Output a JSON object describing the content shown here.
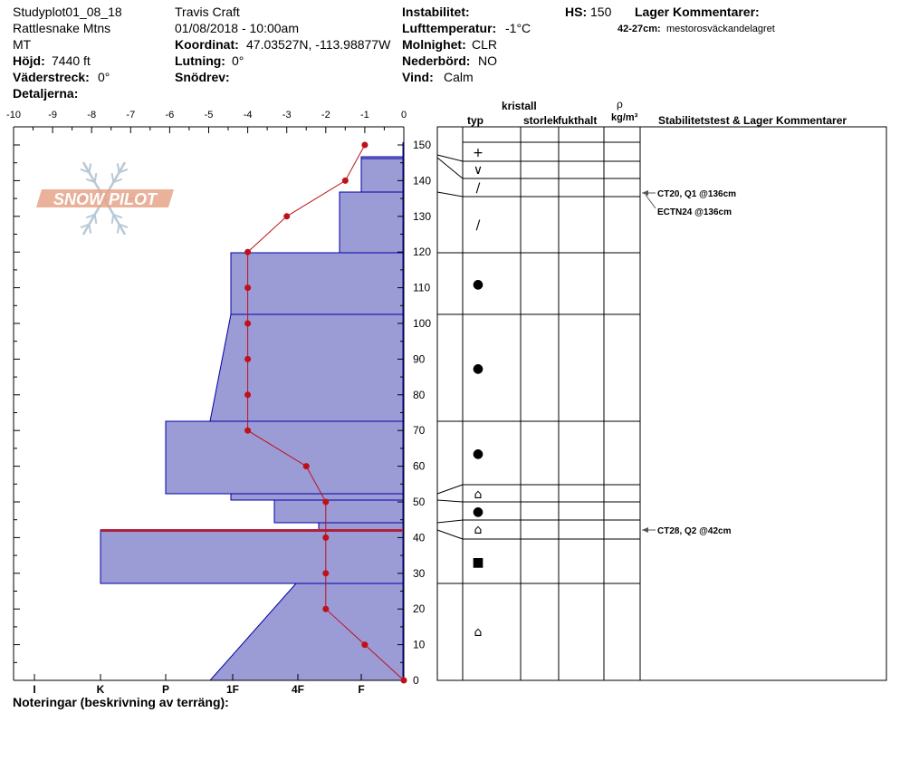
{
  "header": {
    "study_plot": "Studyplot01_08_18",
    "range": "Rattlesnake Mtns",
    "state": "MT",
    "elev_label": "Höjd:",
    "elev_value": "7440 ft",
    "aspect_label": "Väderstreck:",
    "aspect_value": "0°",
    "details_label": "Detaljerna:",
    "observer": "Travis  Craft",
    "datetime": "01/08/2018 - 10:00am",
    "coord_label": "Koordinat:",
    "coord_value": "47.03527N, -113.98877W",
    "slope_label": "Lutning:",
    "slope_value": "0°",
    "drift_label": "Snödrev:",
    "drift_value": "",
    "instab_label": "Instabilitet:",
    "instab_value": "",
    "airtemp_label": "Lufttemperatur:",
    "airtemp_value": "-1°C",
    "sky_label": "Molnighet:",
    "sky_value": "CLR",
    "precip_label": "Nederbörd:",
    "precip_value": "NO",
    "wind_label": "Vind:",
    "wind_value": "Calm",
    "hs_label": "HS:",
    "hs_value": "150",
    "layer_comments_label": "Lager Kommentarer:",
    "layer_comment_range": "42-27cm:",
    "layer_comment_text": "mestorosväckandelagret",
    "notes_label": "Noteringar (beskrivning av terräng):"
  },
  "logo": {
    "text": "SNOW PILOT"
  },
  "columns": {
    "kristall": "kristall",
    "typ": "typ",
    "storlek": "storlek",
    "fukthalt": "fukthalt",
    "rho": "ρ",
    "density_unit": "kg/m³",
    "stability": "Stabilitetstest & Lager Kommentarer"
  },
  "chart_data": {
    "type": "snow-profile",
    "temp_axis": {
      "ticks": [
        "-10",
        "-9",
        "-8",
        "-7",
        "-6",
        "-5",
        "-4",
        "-3",
        "-2",
        "-1",
        "0"
      ],
      "min": -10,
      "max": 0
    },
    "hardness_axis": {
      "ticks": [
        "I",
        "K",
        "P",
        "1F",
        "4F",
        "F"
      ]
    },
    "height_axis": {
      "ticks": [
        "150",
        "140",
        "130",
        "120",
        "110",
        "100",
        "90",
        "80",
        "70",
        "60",
        "50",
        "40",
        "30",
        "20",
        "10",
        "0"
      ],
      "min": 0,
      "max": 150
    },
    "temperature_profile": [
      {
        "h": 150,
        "t": -1.0
      },
      {
        "h": 140,
        "t": -1.5
      },
      {
        "h": 130,
        "t": -3.0
      },
      {
        "h": 120,
        "t": -4.0
      },
      {
        "h": 110,
        "t": -4.0
      },
      {
        "h": 100,
        "t": -4.0
      },
      {
        "h": 90,
        "t": -4.0
      },
      {
        "h": 80,
        "t": -4.0
      },
      {
        "h": 70,
        "t": -4.0
      },
      {
        "h": 60,
        "t": -2.5
      },
      {
        "h": 50,
        "t": -2.0
      },
      {
        "h": 40,
        "t": -2.0
      },
      {
        "h": 30,
        "t": -2.0
      },
      {
        "h": 20,
        "t": -2.0
      },
      {
        "h": 10,
        "t": -1.0
      },
      {
        "h": 0,
        "t": 0.0
      }
    ],
    "layer_boundaries": [
      150,
      146,
      145,
      136,
      120,
      102,
      72,
      52,
      50,
      45,
      42,
      40,
      27,
      0
    ],
    "crystal_types": [
      {
        "h_top": 150,
        "h_bot": 146,
        "glyph": "+"
      },
      {
        "h_top": 145,
        "h_bot": 140,
        "glyph": "∨"
      },
      {
        "h_top": 140,
        "h_bot": 136,
        "glyph": "/"
      },
      {
        "h_top": 136,
        "h_bot": 120,
        "glyph": "/"
      },
      {
        "h_top": 120,
        "h_bot": 102,
        "glyph": "●"
      },
      {
        "h_top": 102,
        "h_bot": 72,
        "glyph": "●"
      },
      {
        "h_top": 72,
        "h_bot": 52,
        "glyph": "●"
      },
      {
        "h_top": 55,
        "h_bot": 50,
        "glyph": "⌂"
      },
      {
        "h_top": 50,
        "h_bot": 45,
        "glyph": "●"
      },
      {
        "h_top": 45,
        "h_bot": 40,
        "glyph": "⌂"
      },
      {
        "h_top": 40,
        "h_bot": 27,
        "glyph": "■"
      },
      {
        "h_top": 27,
        "h_bot": 0,
        "glyph": "⌂"
      }
    ],
    "stability_tests": [
      {
        "h": 136,
        "text": "CT20, Q1 @136cm"
      },
      {
        "h": 136,
        "text": "ECTN24 @136cm"
      },
      {
        "h": 42,
        "text": "CT28, Q2 @42cm"
      }
    ],
    "weak_layer_h": 42
  }
}
